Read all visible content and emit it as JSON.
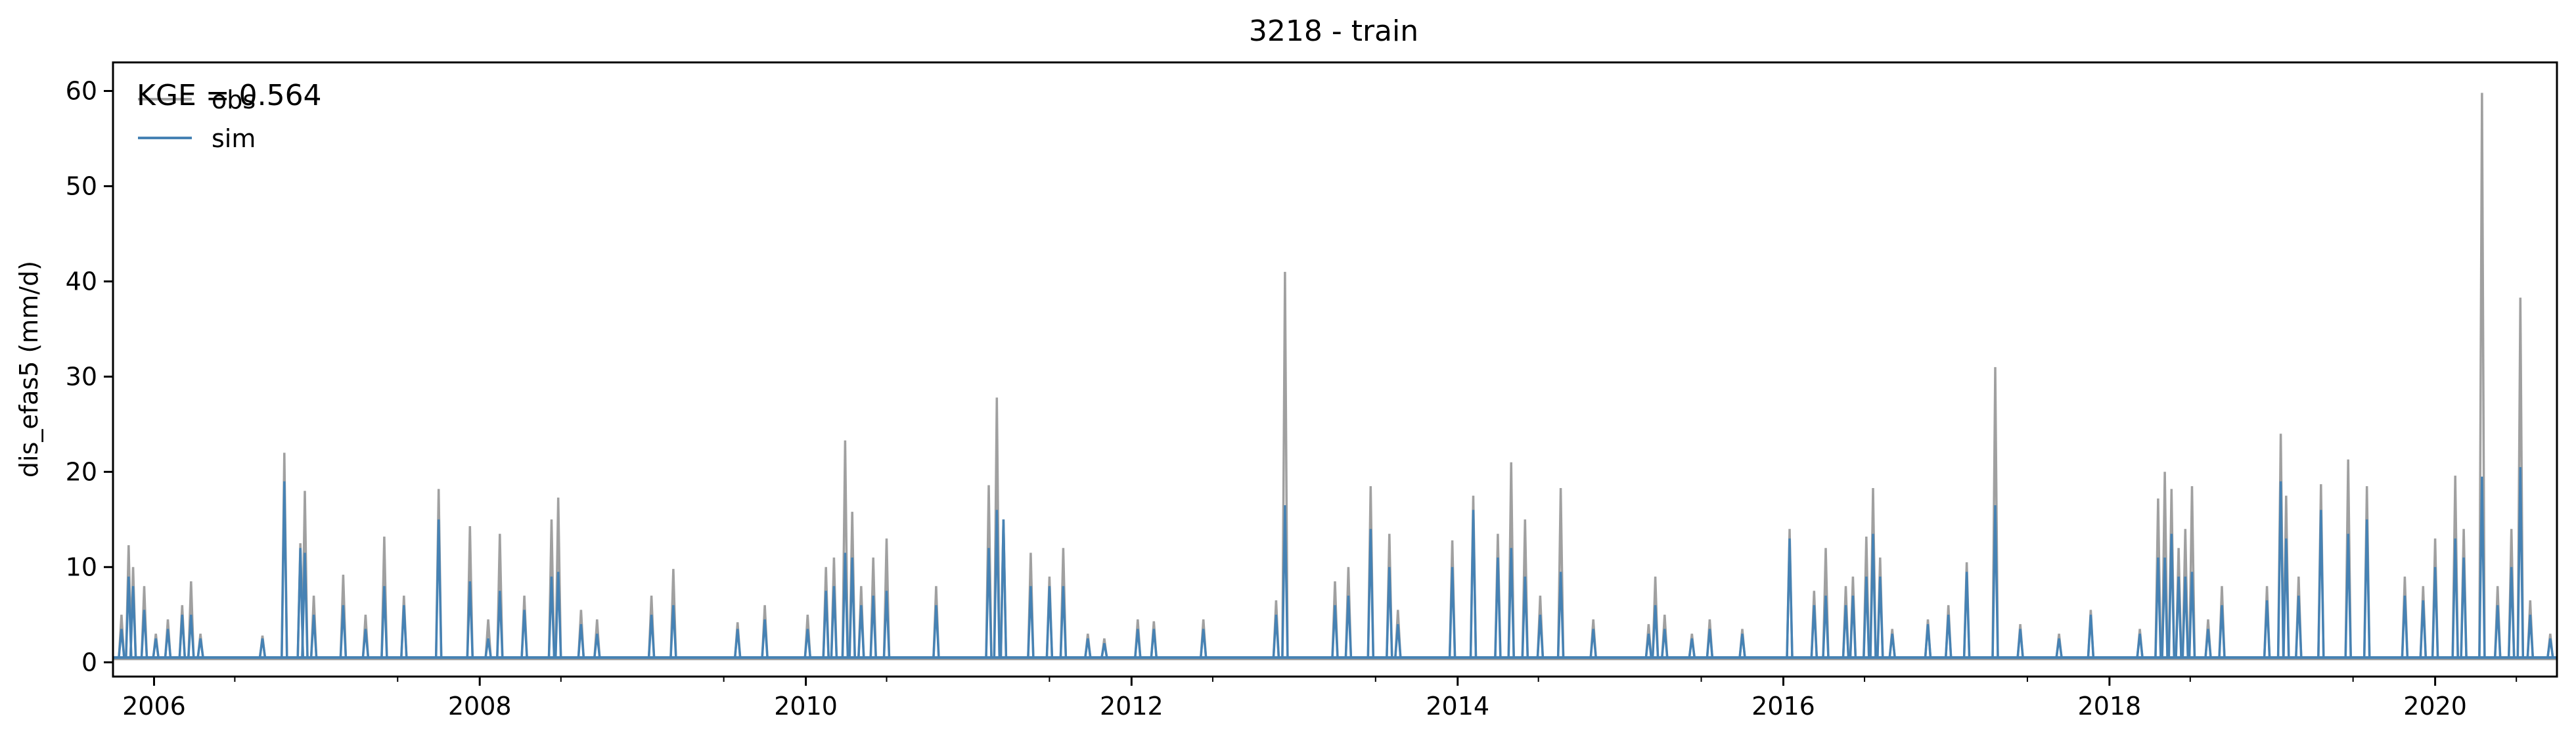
{
  "chart_data": {
    "type": "line",
    "title": "3218 - train",
    "xlabel": "",
    "ylabel": "dis_efas5 (mm/d)",
    "xlim": [
      "2005-10-01",
      "2020-09-30"
    ],
    "ylim": [
      -1.5,
      63
    ],
    "xticks": [
      {
        "date": "2006-01-01",
        "label": "2006"
      },
      {
        "date": "2008-01-01",
        "label": "2008"
      },
      {
        "date": "2010-01-01",
        "label": "2010"
      },
      {
        "date": "2012-01-01",
        "label": "2012"
      },
      {
        "date": "2014-01-01",
        "label": "2014"
      },
      {
        "date": "2016-01-01",
        "label": "2016"
      },
      {
        "date": "2018-01-01",
        "label": "2018"
      },
      {
        "date": "2020-01-01",
        "label": "2020"
      }
    ],
    "yticks": [
      0,
      10,
      20,
      30,
      40,
      50,
      60
    ],
    "legend": {
      "placement": "top-left",
      "entries": [
        "obs",
        "sim"
      ]
    },
    "annotation": "KGE = 0.564",
    "grid": false,
    "colors": {
      "obs": "#a0a0a0",
      "sim": "#4682b4"
    },
    "baseline": {
      "obs": 0.35,
      "sim": 0.5
    },
    "series": [
      {
        "name": "obs",
        "color": "#a0a0a0",
        "peaks": [
          [
            "2005-10-20",
            5
          ],
          [
            "2005-11-05",
            12.3
          ],
          [
            "2005-11-15",
            10
          ],
          [
            "2005-12-10",
            8
          ],
          [
            "2006-01-05",
            3
          ],
          [
            "2006-02-01",
            4.5
          ],
          [
            "2006-03-05",
            6
          ],
          [
            "2006-03-25",
            8.5
          ],
          [
            "2006-04-15",
            3
          ],
          [
            "2006-09-01",
            2.8
          ],
          [
            "2006-10-20",
            22
          ],
          [
            "2006-11-25",
            12.5
          ],
          [
            "2006-12-05",
            18
          ],
          [
            "2006-12-25",
            7
          ],
          [
            "2007-03-01",
            9.2
          ],
          [
            "2007-04-20",
            5
          ],
          [
            "2007-06-01",
            13.2
          ],
          [
            "2007-07-15",
            7
          ],
          [
            "2007-10-01",
            18.2
          ],
          [
            "2007-12-10",
            14.3
          ],
          [
            "2008-01-20",
            4.5
          ],
          [
            "2008-02-15",
            13.5
          ],
          [
            "2008-04-10",
            7
          ],
          [
            "2008-06-10",
            15
          ],
          [
            "2008-06-25",
            17.3
          ],
          [
            "2008-08-15",
            5.5
          ],
          [
            "2008-09-20",
            4.5
          ],
          [
            "2009-01-20",
            7
          ],
          [
            "2009-03-10",
            9.8
          ],
          [
            "2009-08-01",
            4.2
          ],
          [
            "2009-10-01",
            6
          ],
          [
            "2010-01-05",
            5
          ],
          [
            "2010-02-15",
            10
          ],
          [
            "2010-03-05",
            11
          ],
          [
            "2010-03-30",
            23.3
          ],
          [
            "2010-04-15",
            15.8
          ],
          [
            "2010-05-05",
            8
          ],
          [
            "2010-06-01",
            11
          ],
          [
            "2010-07-01",
            13
          ],
          [
            "2010-10-20",
            8
          ],
          [
            "2011-02-15",
            18.6
          ],
          [
            "2011-03-05",
            27.8
          ],
          [
            "2011-03-20",
            15
          ],
          [
            "2011-05-20",
            11.5
          ],
          [
            "2011-07-01",
            9
          ],
          [
            "2011-08-01",
            12
          ],
          [
            "2011-09-25",
            3
          ],
          [
            "2011-11-01",
            2.5
          ],
          [
            "2012-01-15",
            4.5
          ],
          [
            "2012-02-20",
            4.3
          ],
          [
            "2012-06-10",
            4.5
          ],
          [
            "2012-11-20",
            6.5
          ],
          [
            "2012-12-10",
            41
          ],
          [
            "2013-04-01",
            8.5
          ],
          [
            "2013-05-01",
            10
          ],
          [
            "2013-06-20",
            18.5
          ],
          [
            "2013-08-01",
            13.5
          ],
          [
            "2013-08-20",
            5.5
          ],
          [
            "2013-12-20",
            12.8
          ],
          [
            "2014-02-05",
            17.5
          ],
          [
            "2014-04-01",
            13.5
          ],
          [
            "2014-05-01",
            21
          ],
          [
            "2014-06-01",
            15
          ],
          [
            "2014-07-05",
            7
          ],
          [
            "2014-08-20",
            18.3
          ],
          [
            "2014-11-01",
            4.5
          ],
          [
            "2015-03-05",
            4
          ],
          [
            "2015-03-20",
            9
          ],
          [
            "2015-04-10",
            5
          ],
          [
            "2015-06-10",
            3
          ],
          [
            "2015-07-20",
            4.5
          ],
          [
            "2015-10-01",
            3.5
          ],
          [
            "2016-01-15",
            14
          ],
          [
            "2016-03-10",
            7.5
          ],
          [
            "2016-04-05",
            12
          ],
          [
            "2016-05-20",
            8
          ],
          [
            "2016-06-05",
            9
          ],
          [
            "2016-07-05",
            13.2
          ],
          [
            "2016-07-20",
            18.3
          ],
          [
            "2016-08-05",
            11
          ],
          [
            "2016-09-01",
            3.5
          ],
          [
            "2016-11-20",
            4.5
          ],
          [
            "2017-01-05",
            6
          ],
          [
            "2017-02-15",
            10.5
          ],
          [
            "2017-04-20",
            31
          ],
          [
            "2017-06-15",
            4
          ],
          [
            "2017-09-10",
            3
          ],
          [
            "2017-11-20",
            5.5
          ],
          [
            "2018-03-10",
            3.5
          ],
          [
            "2018-04-20",
            17.2
          ],
          [
            "2018-05-05",
            20
          ],
          [
            "2018-05-20",
            18.2
          ],
          [
            "2018-06-05",
            12
          ],
          [
            "2018-06-20",
            14
          ],
          [
            "2018-07-05",
            18.5
          ],
          [
            "2018-08-10",
            4.5
          ],
          [
            "2018-09-10",
            8
          ],
          [
            "2018-12-20",
            8
          ],
          [
            "2019-01-20",
            24
          ],
          [
            "2019-02-01",
            17.5
          ],
          [
            "2019-03-01",
            9
          ],
          [
            "2019-04-20",
            18.7
          ],
          [
            "2019-06-20",
            21.3
          ],
          [
            "2019-08-01",
            18.5
          ],
          [
            "2019-10-25",
            9
          ],
          [
            "2019-12-05",
            8
          ],
          [
            "2020-01-01",
            13
          ],
          [
            "2020-02-15",
            19.6
          ],
          [
            "2020-03-05",
            14
          ],
          [
            "2020-04-15",
            59.8
          ],
          [
            "2020-05-20",
            8
          ],
          [
            "2020-06-20",
            14
          ],
          [
            "2020-07-10",
            38.3
          ],
          [
            "2020-08-01",
            6.5
          ],
          [
            "2020-09-15",
            3
          ]
        ]
      },
      {
        "name": "sim",
        "color": "#4682b4",
        "peaks": [
          [
            "2005-10-20",
            3.5
          ],
          [
            "2005-11-05",
            9
          ],
          [
            "2005-11-15",
            8
          ],
          [
            "2005-12-10",
            5.5
          ],
          [
            "2006-01-05",
            2.5
          ],
          [
            "2006-02-01",
            3.5
          ],
          [
            "2006-03-05",
            5
          ],
          [
            "2006-03-25",
            5
          ],
          [
            "2006-04-15",
            2.5
          ],
          [
            "2006-09-01",
            2.5
          ],
          [
            "2006-10-20",
            19
          ],
          [
            "2006-11-25",
            12
          ],
          [
            "2006-12-05",
            11.5
          ],
          [
            "2006-12-25",
            5
          ],
          [
            "2007-03-01",
            6
          ],
          [
            "2007-04-20",
            3.5
          ],
          [
            "2007-06-01",
            8
          ],
          [
            "2007-07-15",
            6
          ],
          [
            "2007-10-01",
            15
          ],
          [
            "2007-12-10",
            8.5
          ],
          [
            "2008-01-20",
            2.5
          ],
          [
            "2008-02-15",
            7.5
          ],
          [
            "2008-04-10",
            5.5
          ],
          [
            "2008-06-10",
            9
          ],
          [
            "2008-06-25",
            9.5
          ],
          [
            "2008-08-15",
            4
          ],
          [
            "2008-09-20",
            3
          ],
          [
            "2009-01-20",
            5
          ],
          [
            "2009-03-10",
            6
          ],
          [
            "2009-08-01",
            3.5
          ],
          [
            "2009-10-01",
            4.5
          ],
          [
            "2010-01-05",
            3.5
          ],
          [
            "2010-02-15",
            7.5
          ],
          [
            "2010-03-05",
            8
          ],
          [
            "2010-03-30",
            11.5
          ],
          [
            "2010-04-15",
            11
          ],
          [
            "2010-05-05",
            6
          ],
          [
            "2010-06-01",
            7
          ],
          [
            "2010-07-01",
            7.5
          ],
          [
            "2010-10-20",
            6
          ],
          [
            "2011-02-15",
            12
          ],
          [
            "2011-03-05",
            16
          ],
          [
            "2011-03-20",
            15
          ],
          [
            "2011-05-20",
            8
          ],
          [
            "2011-07-01",
            8
          ],
          [
            "2011-08-01",
            8
          ],
          [
            "2011-09-25",
            2.5
          ],
          [
            "2011-11-01",
            2
          ],
          [
            "2012-01-15",
            3.5
          ],
          [
            "2012-02-20",
            3.5
          ],
          [
            "2012-06-10",
            3.5
          ],
          [
            "2012-11-20",
            5
          ],
          [
            "2012-12-10",
            16.5
          ],
          [
            "2013-04-01",
            6
          ],
          [
            "2013-05-01",
            7
          ],
          [
            "2013-06-20",
            14
          ],
          [
            "2013-08-01",
            10
          ],
          [
            "2013-08-20",
            4
          ],
          [
            "2013-12-20",
            10
          ],
          [
            "2014-02-05",
            16
          ],
          [
            "2014-04-01",
            11
          ],
          [
            "2014-05-01",
            12
          ],
          [
            "2014-06-01",
            9
          ],
          [
            "2014-07-05",
            5
          ],
          [
            "2014-08-20",
            9.5
          ],
          [
            "2014-11-01",
            3.5
          ],
          [
            "2015-03-05",
            3
          ],
          [
            "2015-03-20",
            6
          ],
          [
            "2015-04-10",
            3.5
          ],
          [
            "2015-06-10",
            2.5
          ],
          [
            "2015-07-20",
            3.5
          ],
          [
            "2015-10-01",
            3
          ],
          [
            "2016-01-15",
            13
          ],
          [
            "2016-03-10",
            6
          ],
          [
            "2016-04-05",
            7
          ],
          [
            "2016-05-20",
            6
          ],
          [
            "2016-06-05",
            7
          ],
          [
            "2016-07-05",
            9
          ],
          [
            "2016-07-20",
            13.5
          ],
          [
            "2016-08-05",
            9
          ],
          [
            "2016-09-01",
            3
          ],
          [
            "2016-11-20",
            4
          ],
          [
            "2017-01-05",
            5
          ],
          [
            "2017-02-15",
            9.5
          ],
          [
            "2017-04-20",
            16.5
          ],
          [
            "2017-06-15",
            3.5
          ],
          [
            "2017-09-10",
            2.5
          ],
          [
            "2017-11-20",
            5
          ],
          [
            "2018-03-10",
            3
          ],
          [
            "2018-04-20",
            11
          ],
          [
            "2018-05-05",
            11
          ],
          [
            "2018-05-20",
            13.5
          ],
          [
            "2018-06-05",
            9
          ],
          [
            "2018-06-20",
            9
          ],
          [
            "2018-07-05",
            9.5
          ],
          [
            "2018-08-10",
            3.5
          ],
          [
            "2018-09-10",
            6
          ],
          [
            "2018-12-20",
            6.5
          ],
          [
            "2019-01-20",
            19
          ],
          [
            "2019-02-01",
            13
          ],
          [
            "2019-03-01",
            7
          ],
          [
            "2019-04-20",
            16
          ],
          [
            "2019-06-20",
            13.5
          ],
          [
            "2019-08-01",
            15
          ],
          [
            "2019-10-25",
            7
          ],
          [
            "2019-12-05",
            6.5
          ],
          [
            "2020-01-01",
            10
          ],
          [
            "2020-02-15",
            13
          ],
          [
            "2020-03-05",
            11
          ],
          [
            "2020-04-15",
            19.5
          ],
          [
            "2020-05-20",
            6
          ],
          [
            "2020-06-20",
            10
          ],
          [
            "2020-07-10",
            20.5
          ],
          [
            "2020-08-01",
            5
          ],
          [
            "2020-09-15",
            2.5
          ]
        ]
      }
    ]
  }
}
